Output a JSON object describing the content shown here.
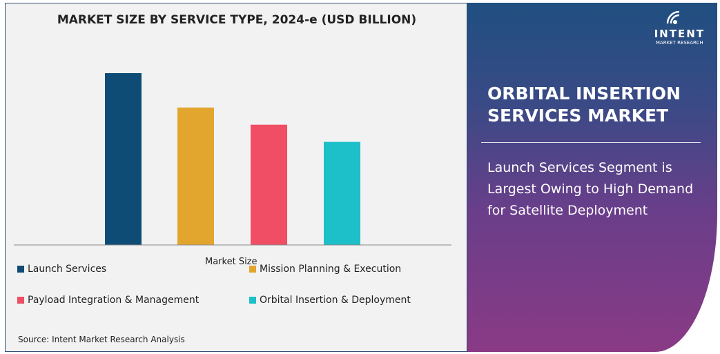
{
  "logo": {
    "name": "INTENT",
    "sub": "MARKET RESEARCH",
    "tm": "TM"
  },
  "right": {
    "title": "ORBITAL INSERTION SERVICES MARKET",
    "text": "Launch Services Segment is Largest Owing to High Demand for Satellite Deployment"
  },
  "source": "Source: Intent Market Research Analysis",
  "chart_data": {
    "type": "bar",
    "title": "MARKET SIZE BY SERVICE TYPE, 2024-e (USD BILLION)",
    "xlabel": "Market Size",
    "ylabel": "",
    "categories": [
      "Launch Services",
      "Mission Planning & Execution",
      "Payload Integration & Management",
      "Orbital Insertion & Deployment"
    ],
    "values": [
      100,
      80,
      70,
      60
    ],
    "colors": [
      "#0f4c75",
      "#e2a62f",
      "#f04e64",
      "#1dbfc8"
    ],
    "ylim": [
      0,
      100
    ],
    "grid": false,
    "legend_position": "bottom"
  }
}
